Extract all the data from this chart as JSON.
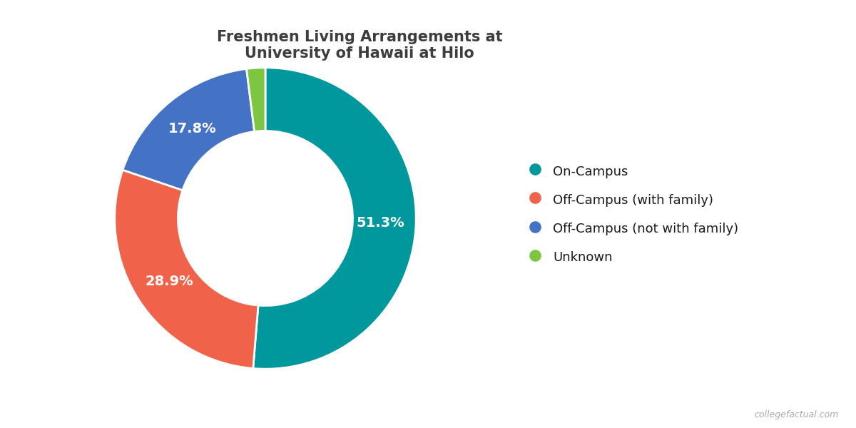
{
  "title": "Freshmen Living Arrangements at\nUniversity of Hawaii at Hilo",
  "labels": [
    "On-Campus",
    "Off-Campus (with family)",
    "Off-Campus (not with family)",
    "Unknown"
  ],
  "values": [
    51.3,
    28.9,
    17.8,
    2.0
  ],
  "colors": [
    "#00979d",
    "#f0634a",
    "#4472c4",
    "#7dc642"
  ],
  "pct_labels": [
    "51.3%",
    "28.9%",
    "17.8%",
    ""
  ],
  "title_color": "#3d3d3d",
  "legend_text_color": "#1a1a1a",
  "watermark": "collegefactual.com",
  "bg_color": "#ffffff",
  "title_fontsize": 15,
  "legend_fontsize": 13,
  "pct_fontsize": 14
}
